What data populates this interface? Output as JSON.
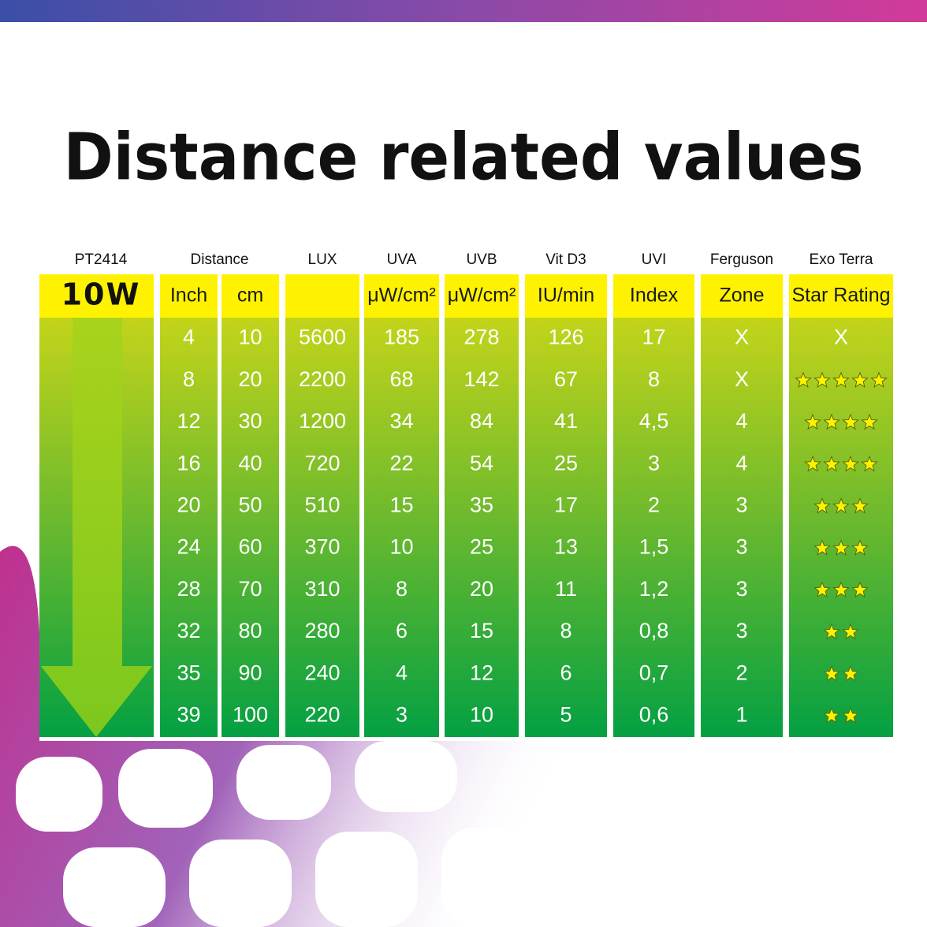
{
  "title": "Distance related values",
  "header": {
    "product": "PT2414",
    "wattage": "10W",
    "groups": [
      "Distance",
      "LUX",
      "UVA",
      "UVB",
      "Vit D3",
      "UVI",
      "Ferguson",
      "Exo Terra"
    ],
    "units": [
      "Inch",
      "cm",
      "μW/cm²",
      "μW/cm²",
      "IU/min",
      "Index",
      "Zone",
      "Star Rating"
    ]
  },
  "rows": [
    [
      "4",
      "10",
      "5600",
      "185",
      "278",
      "126",
      "17",
      "X",
      "X"
    ],
    [
      "8",
      "20",
      "2200",
      "68",
      "142",
      "67",
      "8",
      "X",
      5
    ],
    [
      "12",
      "30",
      "1200",
      "34",
      "84",
      "41",
      "4,5",
      "4",
      4
    ],
    [
      "16",
      "40",
      "720",
      "22",
      "54",
      "25",
      "3",
      "4",
      4
    ],
    [
      "20",
      "50",
      "510",
      "15",
      "35",
      "17",
      "2",
      "3",
      3
    ],
    [
      "24",
      "60",
      "370",
      "10",
      "25",
      "13",
      "1,5",
      "3",
      3
    ],
    [
      "28",
      "70",
      "310",
      "8",
      "20",
      "11",
      "1,2",
      "3",
      3
    ],
    [
      "32",
      "80",
      "280",
      "6",
      "15",
      "8",
      "0,8",
      "3",
      2
    ],
    [
      "35",
      "90",
      "240",
      "4",
      "12",
      "6",
      "0,7",
      "2",
      2
    ],
    [
      "39",
      "100",
      "220",
      "3",
      "10",
      "5",
      "0,6",
      "1",
      2
    ]
  ]
}
